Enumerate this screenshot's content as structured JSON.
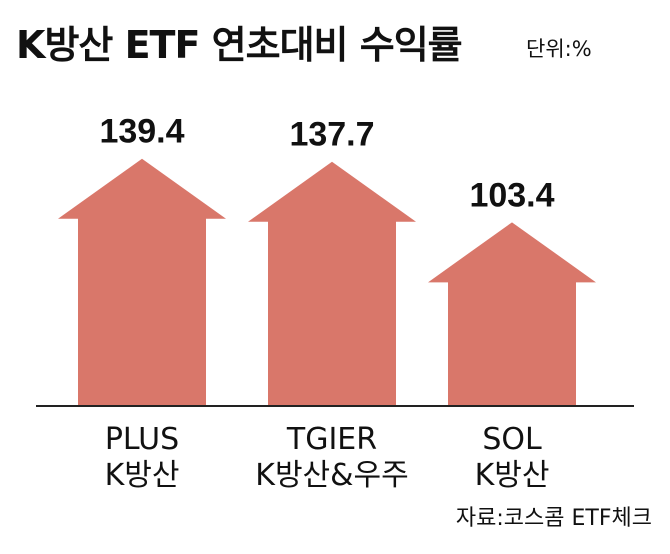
{
  "header": {
    "title": "K방산 ETF 연초대비 수익률",
    "unit": "단위:%"
  },
  "footer": {
    "source": "자료:코스콤 ETF체크"
  },
  "colors": {
    "arrow": "#d9776a",
    "axis": "#222222",
    "text": "#111111"
  },
  "chart_data": {
    "type": "bar",
    "categories": [
      [
        "PLUS",
        "K방산"
      ],
      [
        "TGIER",
        "K방산&우주"
      ],
      [
        "SOL",
        "K방산"
      ]
    ],
    "values": [
      139.4,
      137.7,
      103.4
    ],
    "value_labels": [
      "139.4",
      "137.7",
      "103.4"
    ],
    "title": "K방산 ETF 연초대비 수익률",
    "unit": "단위:%",
    "xlabel": "",
    "ylabel": "",
    "ylim": [
      0,
      150
    ],
    "grid": false,
    "legend": "none"
  }
}
